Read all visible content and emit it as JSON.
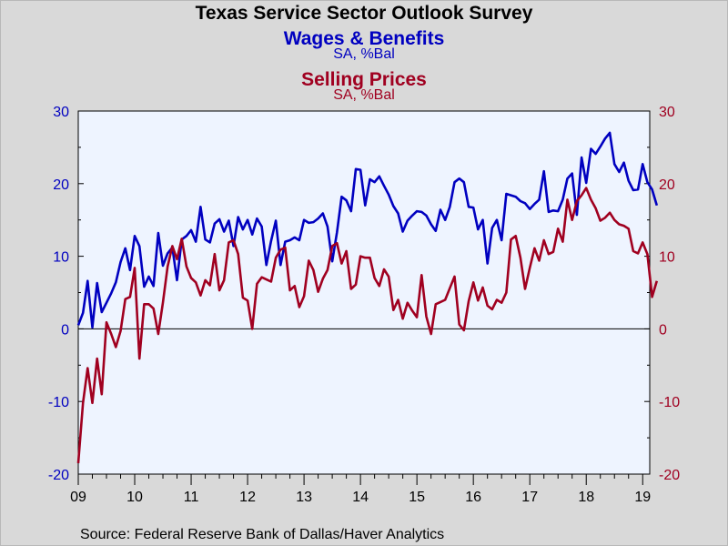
{
  "title": "Texas Service Sector Outlook Survey",
  "source": "Source:  Federal Reserve Bank of Dallas/Haver Analytics",
  "colors": {
    "background": "#d9d9d9",
    "plot_bg": "#eef4ff",
    "wages": "#0000c0",
    "prices": "#a00020"
  },
  "chart_data": {
    "type": "line",
    "title": "Texas Service Sector Outlook Survey",
    "x_ticks": [
      "09",
      "10",
      "11",
      "12",
      "13",
      "14",
      "15",
      "16",
      "17",
      "18",
      "19"
    ],
    "xlim": [
      2009.0,
      2019.125
    ],
    "left_axis": {
      "ylim": [
        -20,
        30
      ],
      "ticks": [
        "30",
        "20",
        "10",
        "0",
        "-10",
        "-20"
      ],
      "color": "#0000c0"
    },
    "right_axis": {
      "ylim": [
        -20,
        30
      ],
      "ticks": [
        "30",
        "20",
        "10",
        "0",
        "-10",
        "-20"
      ],
      "color": "#a00020"
    },
    "zero_line": true,
    "grid": false,
    "x_start": 2009.0,
    "x_step_months": 1,
    "series": [
      {
        "name": "Wages & Benefits",
        "subtitle": "SA, %Bal",
        "color": "#0000c0",
        "values": [
          0.5,
          2.2,
          6.6,
          0.2,
          6.3,
          2.3,
          3.6,
          4.9,
          6.4,
          9.2,
          11.1,
          8.1,
          12.8,
          11.4,
          5.8,
          7.2,
          5.9,
          13.2,
          8.7,
          10.4,
          11.2,
          6.7,
          12.3,
          12.8,
          13.6,
          12.0,
          16.8,
          12.3,
          11.9,
          14.5,
          15.1,
          13.4,
          14.9,
          11.4,
          15.4,
          13.7,
          15.0,
          13.0,
          15.2,
          14.1,
          8.8,
          12.1,
          14.9,
          8.8,
          12.0,
          12.2,
          12.6,
          12.2,
          15.0,
          14.6,
          14.7,
          15.2,
          15.9,
          14.1,
          9.3,
          13.3,
          18.2,
          17.7,
          16.2,
          22.0,
          21.9,
          17.0,
          20.6,
          20.2,
          21.0,
          19.7,
          18.5,
          16.9,
          15.9,
          13.4,
          14.9,
          15.6,
          16.2,
          16.1,
          15.6,
          14.4,
          13.5,
          16.4,
          15.0,
          16.8,
          20.2,
          20.7,
          20.2,
          16.8,
          16.7,
          13.7,
          15.0,
          9.0,
          13.9,
          15.0,
          12.2,
          18.6,
          18.4,
          18.2,
          17.6,
          17.3,
          16.5,
          17.2,
          17.8,
          21.7,
          16.1,
          16.3,
          16.2,
          17.8,
          20.7,
          21.4,
          15.7,
          23.6,
          20.1,
          24.8,
          24.1,
          25.1,
          26.2,
          27.0,
          22.7,
          21.6,
          22.9,
          20.4,
          19.1,
          19.2,
          22.7,
          20.2,
          19.2,
          17.0
        ]
      },
      {
        "name": "Selling Prices",
        "subtitle": "SA, %Bal",
        "color": "#a00020",
        "values": [
          -18.5,
          -10.2,
          -5.4,
          -10.2,
          -4.1,
          -9.0,
          0.9,
          -0.7,
          -2.5,
          -0.3,
          4.1,
          4.4,
          8.4,
          -4.1,
          3.4,
          3.4,
          2.8,
          -0.7,
          3.6,
          8.6,
          11.4,
          9.6,
          12.4,
          8.6,
          7.0,
          6.4,
          4.6,
          6.7,
          6.0,
          10.3,
          5.3,
          6.7,
          11.9,
          12.2,
          10.3,
          4.3,
          3.9,
          0.0,
          6.2,
          7.1,
          6.8,
          6.5,
          9.8,
          10.9,
          11.2,
          5.3,
          5.9,
          3.0,
          4.5,
          9.4,
          8.1,
          5.1,
          6.9,
          8.1,
          11.4,
          11.8,
          9.0,
          10.7,
          5.5,
          6.1,
          10.0,
          9.8,
          9.8,
          7.0,
          5.9,
          8.2,
          7.2,
          2.6,
          4.0,
          1.4,
          3.6,
          2.5,
          1.6,
          7.4,
          1.7,
          -0.7,
          3.4,
          3.7,
          4.0,
          5.6,
          7.2,
          0.6,
          -0.2,
          3.8,
          6.4,
          3.9,
          5.7,
          3.2,
          2.7,
          4.0,
          3.6,
          5.0,
          12.3,
          12.8,
          9.8,
          5.5,
          8.4,
          11.1,
          9.4,
          12.2,
          10.3,
          10.6,
          13.8,
          12.0,
          17.8,
          15.0,
          17.6,
          18.4,
          19.4,
          17.8,
          16.6,
          14.9,
          15.3,
          16.0,
          15.0,
          14.4,
          14.2,
          13.8,
          10.7,
          10.4,
          11.9,
          10.3,
          4.4,
          6.6
        ]
      }
    ]
  }
}
